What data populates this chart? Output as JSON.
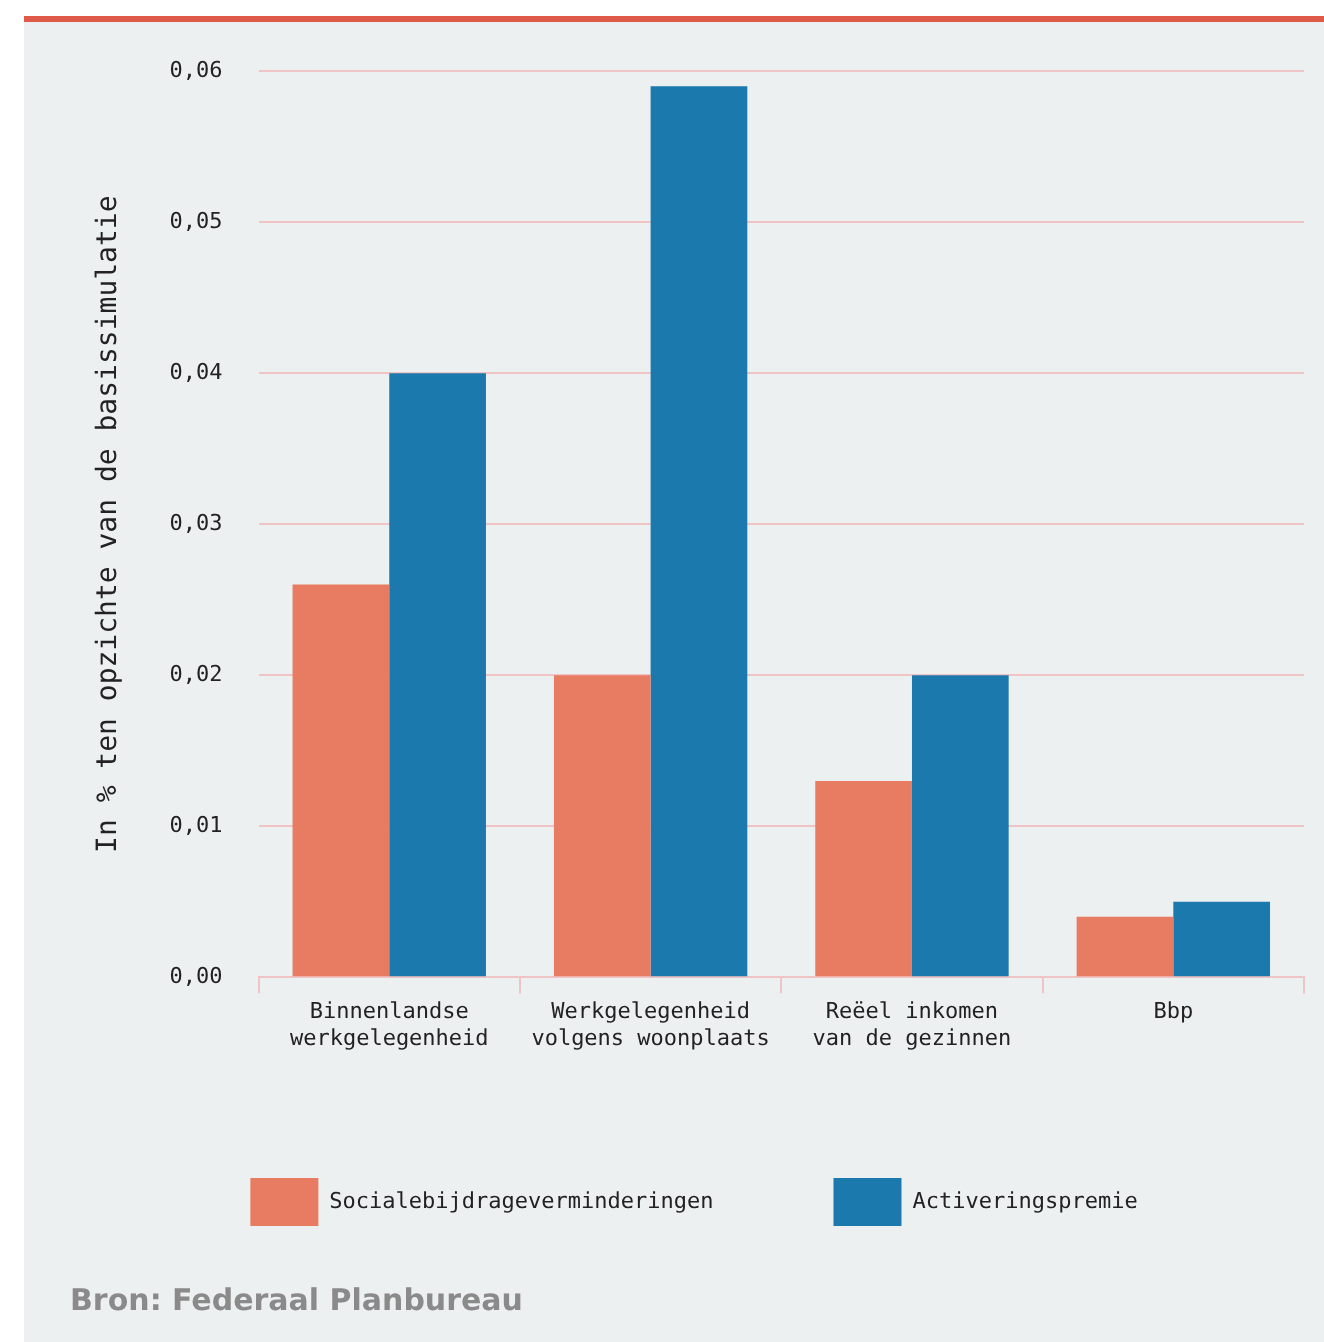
{
  "chart_data": {
    "type": "bar",
    "ylabel": "In % ten opzichte van de basissimulatie",
    "categories": [
      "Binnenlandse\nwerkgelegenheid",
      "Werkgelegenheid\nvolgens woonplaats",
      "Reëel inkomen\nvan de gezinnen",
      "Bbp"
    ],
    "series": [
      {
        "name": "Socialebijdrageverminderingen",
        "color": "#e77c62",
        "values": [
          0.026,
          0.02,
          0.013,
          0.004
        ]
      },
      {
        "name": "Activeringspremie",
        "color": "#1c79ad",
        "values": [
          0.04,
          0.059,
          0.02,
          0.005
        ]
      }
    ],
    "ylim": [
      0,
      0.06
    ],
    "yticks": [
      {
        "value": 0,
        "label": "0,00"
      },
      {
        "value": 0.01,
        "label": "0,01"
      },
      {
        "value": 0.02,
        "label": "0,02"
      },
      {
        "value": 0.03,
        "label": "0,03"
      },
      {
        "value": 0.04,
        "label": "0,04"
      },
      {
        "value": 0.05,
        "label": "0,05"
      },
      {
        "value": 0.06,
        "label": "0,06"
      }
    ],
    "grid": "y",
    "legend": "bottom",
    "annotations": [
      "Bron: Federaal Planbureau"
    ]
  }
}
